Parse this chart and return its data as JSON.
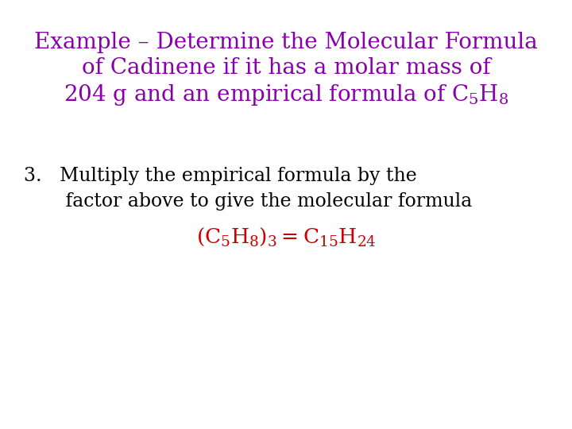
{
  "background_color": "#ffffff",
  "title_color": "#8800aa",
  "title_line1": "Example – Determine the Molecular Formula",
  "title_line2": "of Cadinene if it has a molar mass of",
  "title_line3_pre": "204 g and an empirical formula of C",
  "title_fontsize": 20,
  "body_color": "#000000",
  "body_line1": "3.   Multiply the empirical formula by the",
  "body_line2": "       factor above to give the molecular formula",
  "body_fontsize": 17,
  "formula_color": "#cc0000",
  "formula_fontsize": 19,
  "fig_width": 7.2,
  "fig_height": 5.4,
  "dpi": 100
}
